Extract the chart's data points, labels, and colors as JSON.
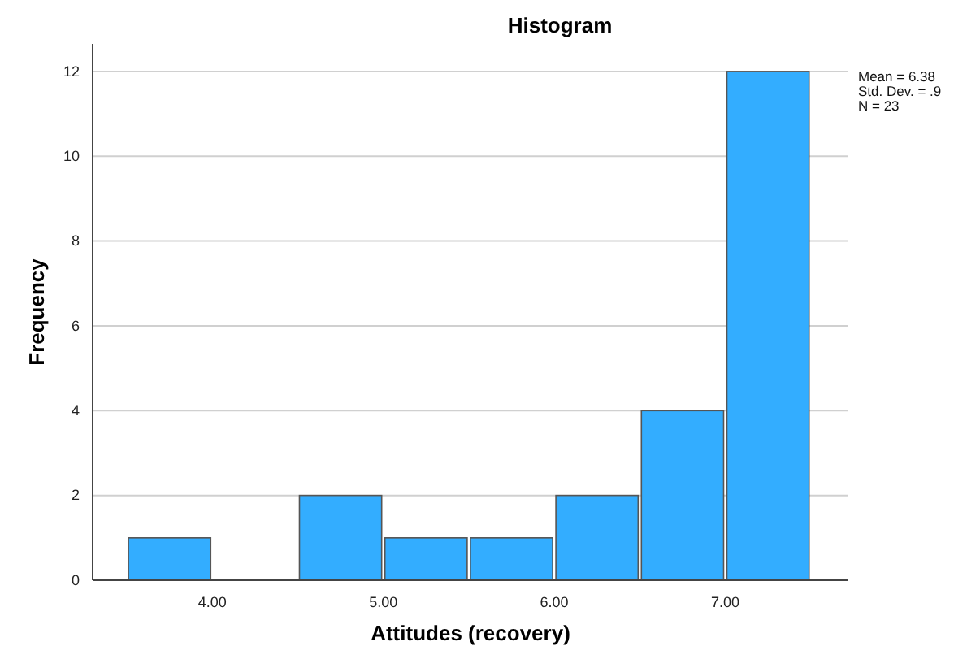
{
  "chart_data": {
    "type": "histogram",
    "title": "Histogram",
    "xlabel": "Attitudes (recovery)",
    "ylabel": "Frequency",
    "bins": [
      3.5,
      4.0,
      4.5,
      5.0,
      5.5,
      6.0,
      6.5,
      7.0,
      7.5
    ],
    "values": [
      1,
      0,
      2,
      1,
      1,
      2,
      4,
      12
    ],
    "color": "#33adff",
    "xlim": [
      3.3,
      7.72
    ],
    "xticks": [
      {
        "value": 4,
        "label": "4.00"
      },
      {
        "value": 5,
        "label": "5.00"
      },
      {
        "value": 6,
        "label": "6.00"
      },
      {
        "value": 7,
        "label": "7.00"
      }
    ],
    "ylim": [
      0,
      12.65
    ],
    "yticks": [
      0,
      2,
      4,
      6,
      8,
      10,
      12
    ],
    "grid": "y",
    "annotations": [
      "Mean = 6.38",
      "Std. Dev. = .9",
      "N = 23"
    ]
  }
}
